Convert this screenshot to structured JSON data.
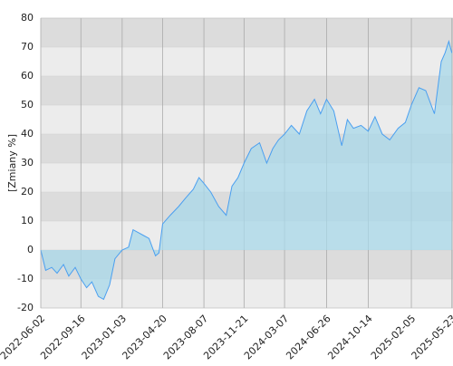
{
  "chart_data": {
    "type": "area",
    "y_label": "[Zmiany %]",
    "x": [
      "2022-06-02",
      "2022-06-15",
      "2022-07-01",
      "2022-07-15",
      "2022-08-01",
      "2022-08-15",
      "2022-09-01",
      "2022-09-16",
      "2022-10-01",
      "2022-10-15",
      "2022-11-01",
      "2022-11-15",
      "2022-12-01",
      "2022-12-15",
      "2023-01-03",
      "2023-01-20",
      "2023-02-01",
      "2023-02-15",
      "2023-03-01",
      "2023-03-15",
      "2023-04-01",
      "2023-04-10",
      "2023-04-20",
      "2023-05-10",
      "2023-06-01",
      "2023-06-20",
      "2023-07-10",
      "2023-07-25",
      "2023-08-07",
      "2023-08-25",
      "2023-09-15",
      "2023-10-05",
      "2023-10-20",
      "2023-11-05",
      "2023-11-21",
      "2023-12-10",
      "2024-01-01",
      "2024-01-20",
      "2024-02-05",
      "2024-02-20",
      "2024-03-07",
      "2024-03-25",
      "2024-04-15",
      "2024-05-05",
      "2024-05-25",
      "2024-06-10",
      "2024-06-26",
      "2024-07-15",
      "2024-08-05",
      "2024-08-20",
      "2024-09-05",
      "2024-09-25",
      "2024-10-14",
      "2024-11-01",
      "2024-11-20",
      "2024-12-10",
      "2025-01-01",
      "2025-01-20",
      "2025-02-05",
      "2025-02-25",
      "2025-03-15",
      "2025-04-07",
      "2025-04-25",
      "2025-05-05",
      "2025-05-15",
      "2025-05-23"
    ],
    "values": [
      0,
      -7,
      -6,
      -8,
      -5,
      -9,
      -6,
      -10,
      -13,
      -11,
      -16,
      -17,
      -12,
      -3,
      0,
      1,
      7,
      6,
      5,
      4,
      -2,
      -1,
      9,
      12,
      15,
      18,
      21,
      25,
      23,
      20,
      15,
      12,
      22,
      25,
      30,
      35,
      37,
      30,
      35,
      38,
      40,
      43,
      40,
      48,
      52,
      47,
      52,
      48,
      36,
      45,
      42,
      43,
      41,
      46,
      40,
      38,
      42,
      44,
      50,
      56,
      55,
      47,
      65,
      68,
      72,
      68
    ],
    "line_color": "#4a9ff0",
    "fill_color": "#a8d8ea",
    "xlim": [
      "2022-06-02",
      "2025-05-26"
    ],
    "xticks": [
      "2022-06-02",
      "2022-09-16",
      "2023-01-03",
      "2023-04-20",
      "2023-08-07",
      "2023-11-21",
      "2024-03-07",
      "2024-06-26",
      "2024-10-14",
      "2025-02-05",
      "2025-05-23"
    ],
    "ylim": [
      -20,
      80
    ],
    "yticks": [
      -20,
      -10,
      0,
      10,
      20,
      30,
      40,
      50,
      60,
      70,
      80
    ],
    "grid": true
  }
}
